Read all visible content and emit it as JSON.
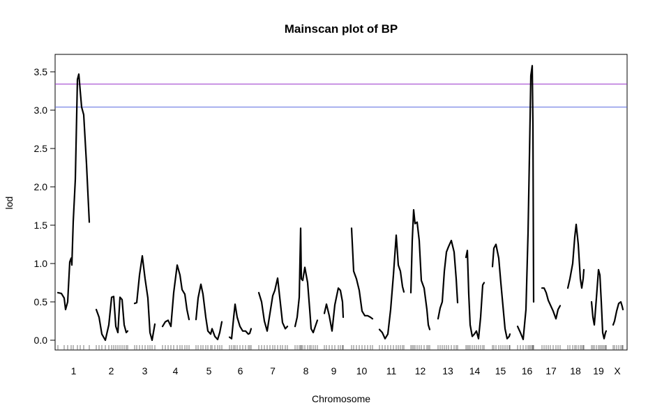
{
  "chart_data": {
    "type": "line",
    "title": "Mainscan plot of BP",
    "xlabel": "Chromosome",
    "ylabel": "lod",
    "ylim": [
      -0.13,
      3.72
    ],
    "y_ticks": [
      "0.0",
      "0.5",
      "1.0",
      "1.5",
      "2.0",
      "2.5",
      "3.0",
      "3.5"
    ],
    "y_tick_values": [
      0,
      0.5,
      1.0,
      1.5,
      2.0,
      2.5,
      3.0,
      3.5
    ],
    "categories": [
      "1",
      "2",
      "3",
      "4",
      "5",
      "6",
      "7",
      "8",
      "9",
      "10",
      "11",
      "12",
      "13",
      "14",
      "15",
      "16",
      "17",
      "18",
      "19",
      "X"
    ],
    "thresholds": [
      {
        "value": 3.34,
        "color": "#9933cc"
      },
      {
        "value": 3.04,
        "color": "#5a6ae0"
      }
    ],
    "chromosome_spans": [
      [
        83,
        128
      ],
      [
        136,
        183
      ],
      [
        193,
        222
      ],
      [
        232,
        271
      ],
      [
        281,
        318
      ],
      [
        328,
        361
      ],
      [
        370,
        412
      ],
      [
        422,
        455
      ],
      [
        465,
        492
      ],
      [
        503,
        534
      ],
      [
        543,
        579
      ],
      [
        588,
        617
      ],
      [
        627,
        657
      ],
      [
        667,
        694
      ],
      [
        704,
        731
      ],
      [
        741,
        770
      ],
      [
        777,
        803
      ],
      [
        813,
        837
      ],
      [
        847,
        869
      ],
      [
        877,
        893
      ]
    ],
    "series": [
      {
        "chromosome": "1",
        "points": [
          [
            83,
            0.62
          ],
          [
            88,
            0.61
          ],
          [
            92,
            0.55
          ],
          [
            94,
            0.4
          ],
          [
            97,
            0.5
          ],
          [
            100,
            1.02
          ],
          [
            102,
            1.07
          ],
          [
            103,
            0.98
          ],
          [
            105,
            1.55
          ],
          [
            108,
            2.1
          ],
          [
            111,
            3.4
          ],
          [
            113,
            3.47
          ],
          [
            115,
            3.25
          ],
          [
            117,
            3.04
          ],
          [
            120,
            2.94
          ],
          [
            124,
            2.3
          ],
          [
            128,
            1.54
          ]
        ]
      },
      {
        "chromosome": "2",
        "points": [
          [
            138,
            0.4
          ],
          [
            142,
            0.3
          ],
          [
            146,
            0.08
          ],
          [
            151,
            0.0
          ],
          [
            156,
            0.2
          ],
          [
            160,
            0.56
          ],
          [
            163,
            0.57
          ],
          [
            166,
            0.18
          ],
          [
            169,
            0.1
          ],
          [
            172,
            0.56
          ],
          [
            175,
            0.53
          ],
          [
            178,
            0.2
          ],
          [
            181,
            0.1
          ],
          [
            183,
            0.12
          ]
        ]
      },
      {
        "chromosome": "3",
        "points": [
          [
            193,
            0.48
          ],
          [
            196,
            0.49
          ],
          [
            200,
            0.85
          ],
          [
            204,
            1.1
          ],
          [
            208,
            0.8
          ],
          [
            212,
            0.55
          ],
          [
            215,
            0.1
          ],
          [
            218,
            0.0
          ],
          [
            222,
            0.21
          ]
        ]
      },
      {
        "chromosome": "4",
        "points": [
          [
            233,
            0.18
          ],
          [
            237,
            0.24
          ],
          [
            241,
            0.26
          ],
          [
            245,
            0.18
          ],
          [
            249,
            0.62
          ],
          [
            254,
            0.98
          ],
          [
            258,
            0.85
          ],
          [
            261,
            0.66
          ],
          [
            265,
            0.6
          ],
          [
            268,
            0.4
          ],
          [
            271,
            0.27
          ]
        ]
      },
      {
        "chromosome": "5",
        "points": [
          [
            281,
            0.27
          ],
          [
            284,
            0.55
          ],
          [
            288,
            0.73
          ],
          [
            291,
            0.6
          ],
          [
            295,
            0.3
          ],
          [
            298,
            0.12
          ],
          [
            302,
            0.08
          ],
          [
            304,
            0.15
          ],
          [
            308,
            0.05
          ],
          [
            312,
            0.01
          ],
          [
            315,
            0.1
          ],
          [
            318,
            0.24
          ]
        ]
      },
      {
        "chromosome": "6",
        "points": [
          [
            329,
            0.04
          ],
          [
            332,
            0.02
          ],
          [
            335,
            0.3
          ],
          [
            337,
            0.47
          ],
          [
            340,
            0.3
          ],
          [
            344,
            0.18
          ],
          [
            348,
            0.12
          ],
          [
            352,
            0.12
          ],
          [
            356,
            0.08
          ],
          [
            358,
            0.09
          ],
          [
            360,
            0.15
          ]
        ]
      },
      {
        "chromosome": "7",
        "points": [
          [
            371,
            0.62
          ],
          [
            375,
            0.5
          ],
          [
            379,
            0.25
          ],
          [
            383,
            0.12
          ],
          [
            387,
            0.35
          ],
          [
            391,
            0.58
          ],
          [
            394,
            0.65
          ],
          [
            398,
            0.81
          ],
          [
            402,
            0.48
          ],
          [
            405,
            0.23
          ],
          [
            409,
            0.15
          ],
          [
            412,
            0.18
          ]
        ]
      },
      {
        "chromosome": "8",
        "points": [
          [
            423,
            0.18
          ],
          [
            426,
            0.3
          ],
          [
            429,
            0.56
          ],
          [
            431,
            1.46
          ],
          [
            432,
            0.8
          ],
          [
            434,
            0.78
          ],
          [
            437,
            0.95
          ],
          [
            441,
            0.75
          ],
          [
            444,
            0.4
          ],
          [
            446,
            0.15
          ],
          [
            449,
            0.1
          ],
          [
            452,
            0.18
          ],
          [
            455,
            0.26
          ]
        ]
      },
      {
        "chromosome": "9",
        "points": [
          [
            465,
            0.35
          ],
          [
            468,
            0.47
          ],
          [
            472,
            0.32
          ],
          [
            476,
            0.12
          ],
          [
            480,
            0.46
          ],
          [
            485,
            0.68
          ],
          [
            488,
            0.65
          ],
          [
            491,
            0.5
          ],
          [
            492,
            0.3
          ]
        ]
      },
      {
        "chromosome": "10",
        "points": [
          [
            504,
            1.46
          ],
          [
            507,
            0.9
          ],
          [
            511,
            0.8
          ],
          [
            515,
            0.65
          ],
          [
            519,
            0.38
          ],
          [
            523,
            0.32
          ],
          [
            527,
            0.32
          ],
          [
            531,
            0.3
          ],
          [
            534,
            0.28
          ]
        ]
      },
      {
        "chromosome": "11",
        "points": [
          [
            544,
            0.14
          ],
          [
            548,
            0.1
          ],
          [
            552,
            0.02
          ],
          [
            556,
            0.08
          ],
          [
            560,
            0.4
          ],
          [
            564,
            0.85
          ],
          [
            568,
            1.37
          ],
          [
            571,
            0.98
          ],
          [
            574,
            0.9
          ],
          [
            577,
            0.7
          ],
          [
            579,
            0.63
          ]
        ]
      },
      {
        "chromosome": "12",
        "points": [
          [
            589,
            0.62
          ],
          [
            591,
            1.3
          ],
          [
            593,
            1.7
          ],
          [
            595,
            1.52
          ],
          [
            598,
            1.54
          ],
          [
            601,
            1.3
          ],
          [
            604,
            0.78
          ],
          [
            608,
            0.68
          ],
          [
            612,
            0.4
          ],
          [
            614,
            0.2
          ],
          [
            616,
            0.14
          ]
        ]
      },
      {
        "chromosome": "13",
        "points": [
          [
            628,
            0.28
          ],
          [
            631,
            0.42
          ],
          [
            634,
            0.5
          ],
          [
            637,
            0.9
          ],
          [
            640,
            1.15
          ],
          [
            643,
            1.22
          ],
          [
            647,
            1.3
          ],
          [
            651,
            1.15
          ],
          [
            654,
            0.8
          ],
          [
            656,
            0.49
          ]
        ]
      },
      {
        "chromosome": "14",
        "points": [
          [
            668,
            1.08
          ],
          [
            670,
            1.17
          ],
          [
            672,
            0.6
          ],
          [
            674,
            0.2
          ],
          [
            677,
            0.05
          ],
          [
            680,
            0.08
          ],
          [
            683,
            0.12
          ],
          [
            686,
            0.02
          ],
          [
            689,
            0.3
          ],
          [
            692,
            0.72
          ],
          [
            694,
            0.75
          ]
        ]
      },
      {
        "chromosome": "15",
        "points": [
          [
            706,
            0.96
          ],
          [
            708,
            1.2
          ],
          [
            711,
            1.25
          ],
          [
            715,
            1.07
          ],
          [
            718,
            0.75
          ],
          [
            721,
            0.45
          ],
          [
            724,
            0.15
          ],
          [
            727,
            0.02
          ],
          [
            730,
            0.05
          ],
          [
            731,
            0.08
          ]
        ]
      },
      {
        "chromosome": "16",
        "points": [
          [
            742,
            0.18
          ],
          [
            746,
            0.1
          ],
          [
            750,
            0.01
          ],
          [
            754,
            0.4
          ],
          [
            757,
            1.4
          ],
          [
            759,
            2.4
          ],
          [
            761,
            3.45
          ],
          [
            763,
            3.58
          ],
          [
            764,
            2.8
          ],
          [
            765,
            0.5
          ]
        ]
      },
      {
        "chromosome": "17",
        "points": [
          [
            777,
            0.68
          ],
          [
            780,
            0.68
          ],
          [
            783,
            0.62
          ],
          [
            786,
            0.52
          ],
          [
            789,
            0.46
          ],
          [
            793,
            0.38
          ],
          [
            797,
            0.28
          ],
          [
            800,
            0.4
          ],
          [
            803,
            0.45
          ]
        ]
      },
      {
        "chromosome": "18",
        "points": [
          [
            814,
            0.68
          ],
          [
            817,
            0.8
          ],
          [
            821,
            1.0
          ],
          [
            824,
            1.35
          ],
          [
            826,
            1.51
          ],
          [
            829,
            1.25
          ],
          [
            832,
            0.8
          ],
          [
            834,
            0.68
          ],
          [
            836,
            0.8
          ],
          [
            837,
            0.92
          ]
        ]
      },
      {
        "chromosome": "19",
        "points": [
          [
            848,
            0.5
          ],
          [
            850,
            0.3
          ],
          [
            852,
            0.2
          ],
          [
            855,
            0.55
          ],
          [
            858,
            0.92
          ],
          [
            860,
            0.85
          ],
          [
            862,
            0.5
          ],
          [
            864,
            0.1
          ],
          [
            866,
            0.02
          ],
          [
            868,
            0.1
          ],
          [
            869,
            0.12
          ]
        ]
      },
      {
        "chromosome": "X",
        "points": [
          [
            879,
            0.2
          ],
          [
            881,
            0.25
          ],
          [
            884,
            0.38
          ],
          [
            887,
            0.48
          ],
          [
            890,
            0.5
          ],
          [
            892,
            0.44
          ],
          [
            893,
            0.4
          ]
        ]
      }
    ]
  }
}
